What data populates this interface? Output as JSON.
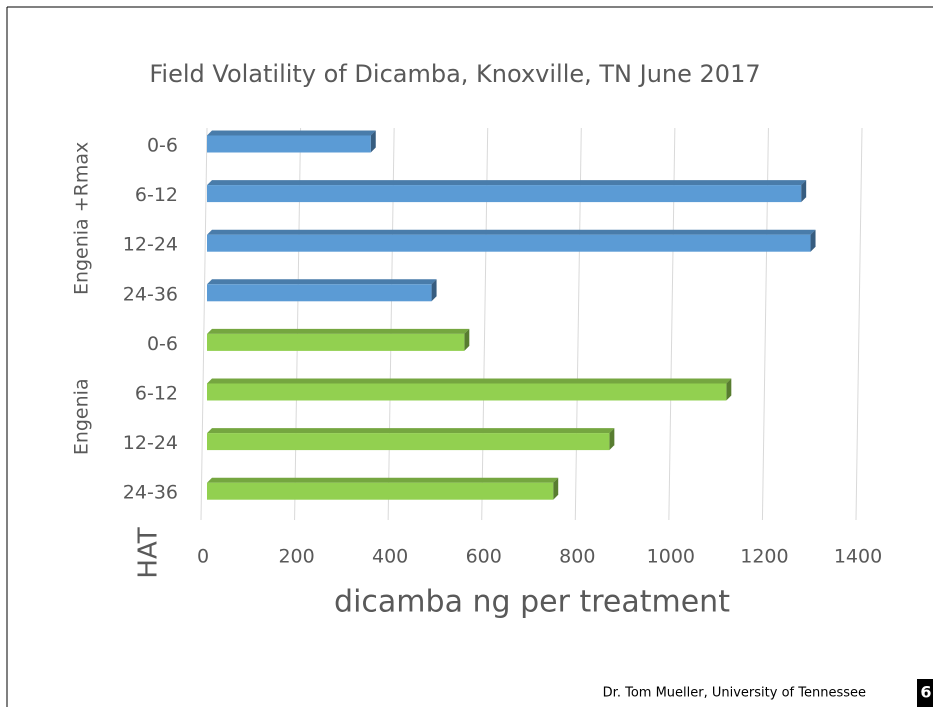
{
  "chart_data": {
    "type": "bar",
    "orientation": "horizontal",
    "title": "Field Volatility of Dicamba, Knoxville, TN June 2017",
    "x_label": "dicamba ng per treatment",
    "y_label": "HAT",
    "categories": [
      "0-6",
      "6-12",
      "12-24",
      "24-36"
    ],
    "series": [
      {
        "name": "Engenia +Rmax",
        "color": "#5b9bd5",
        "values": [
          350,
          1270,
          1290,
          480
        ]
      },
      {
        "name": "Engenia",
        "color": "#92d050",
        "values": [
          550,
          1110,
          860,
          740
        ]
      }
    ],
    "xlim": [
      0,
      1400
    ],
    "xticks": [
      0,
      200,
      400,
      600,
      800,
      1000,
      1200,
      1400
    ],
    "grid": true
  },
  "footer": {
    "credit": "Dr. Tom Mueller, University of Tennessee",
    "page": "6"
  }
}
